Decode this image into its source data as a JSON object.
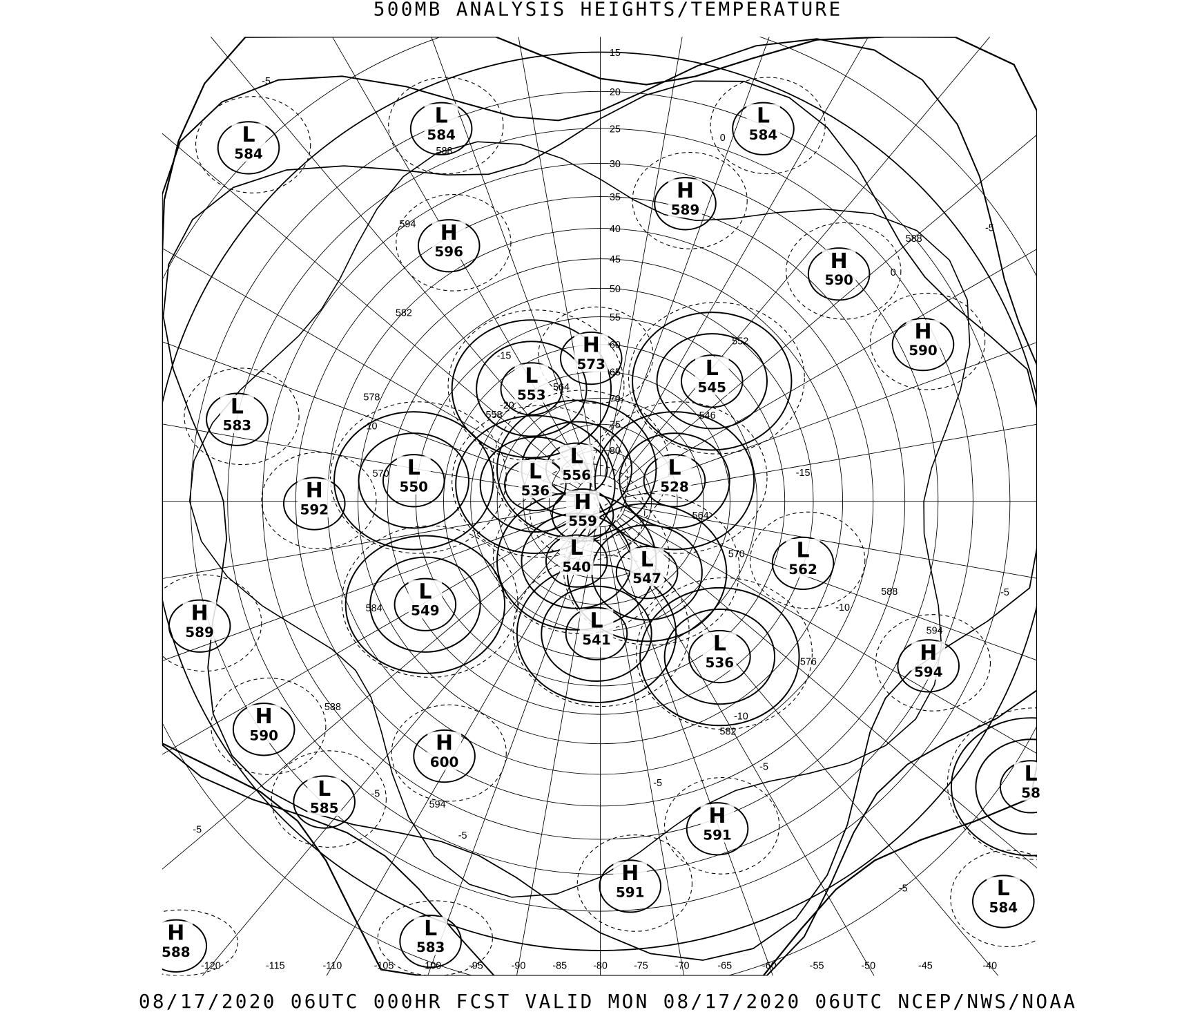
{
  "title": "500MB ANALYSIS  HEIGHTS/TEMPERATURE",
  "footer": "08/17/2020 06UTC 000HR FCST VALID MON 08/17/2020 06UTC  NCEP/NWS/NOAA",
  "projection": "north polar stereographic",
  "latitude_labels": [
    "15",
    "20",
    "25",
    "30",
    "35",
    "40",
    "45",
    "50",
    "55",
    "60",
    "65",
    "70",
    "75",
    "80"
  ],
  "longitude_labels": [
    "-120",
    "-115",
    "-110",
    "-105",
    "-100",
    "-95",
    "-90",
    "-85",
    "-80",
    "-75",
    "-70",
    "-65",
    "-60",
    "-55",
    "-50",
    "-45",
    "-40"
  ],
  "pressure_centers": [
    {
      "type": "L",
      "value": "584"
    },
    {
      "type": "L",
      "value": "584"
    },
    {
      "type": "L",
      "value": "584"
    },
    {
      "type": "H",
      "value": "589"
    },
    {
      "type": "H",
      "value": "596"
    },
    {
      "type": "H",
      "value": "590"
    },
    {
      "type": "H",
      "value": "590"
    },
    {
      "type": "H",
      "value": "573"
    },
    {
      "type": "L",
      "value": "553"
    },
    {
      "type": "L",
      "value": "545"
    },
    {
      "type": "L",
      "value": "583"
    },
    {
      "type": "L",
      "value": "550"
    },
    {
      "type": "L",
      "value": "536"
    },
    {
      "type": "L",
      "value": "556"
    },
    {
      "type": "H",
      "value": "559"
    },
    {
      "type": "L",
      "value": "528"
    },
    {
      "type": "H",
      "value": "592"
    },
    {
      "type": "L",
      "value": "540"
    },
    {
      "type": "L",
      "value": "547"
    },
    {
      "type": "L",
      "value": "562"
    },
    {
      "type": "L",
      "value": "549"
    },
    {
      "type": "H",
      "value": "589"
    },
    {
      "type": "L",
      "value": "541"
    },
    {
      "type": "L",
      "value": "536"
    },
    {
      "type": "H",
      "value": "594"
    },
    {
      "type": "H",
      "value": "590"
    },
    {
      "type": "H",
      "value": "600"
    },
    {
      "type": "L",
      "value": "585"
    },
    {
      "type": "H",
      "value": "591"
    },
    {
      "type": "H",
      "value": "591"
    },
    {
      "type": "L",
      "value": "584"
    },
    {
      "type": "L",
      "value": "58"
    },
    {
      "type": "H",
      "value": "588"
    },
    {
      "type": "L",
      "value": "583"
    }
  ],
  "height_contour_labels": [
    "588",
    "594",
    "582",
    "578",
    "570",
    "564",
    "558",
    "546",
    "552",
    "564",
    "570",
    "588",
    "588",
    "594",
    "576",
    "582",
    "588",
    "594",
    "584"
  ],
  "temperature_contour_labels": [
    "-5",
    "-10",
    "-15",
    "-10",
    "-10",
    "-20",
    "-15",
    "0",
    "0",
    "-5",
    "-5",
    "-5",
    "-5",
    "-5",
    "-5",
    "-5",
    "-5"
  ]
}
